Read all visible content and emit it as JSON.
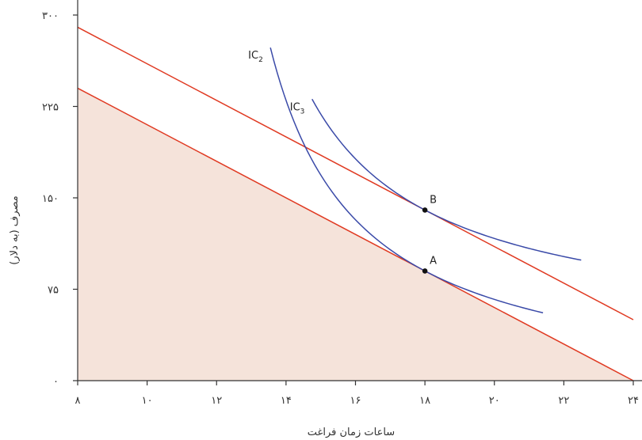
{
  "chart_data": {
    "type": "line",
    "xlabel": "ساعات زمان فراغت",
    "ylabel": "مصرف (به دلار)",
    "xlim": [
      8,
      24
    ],
    "ylim": [
      0,
      300
    ],
    "x_ticks": [
      8,
      10,
      12,
      14,
      16,
      18,
      20,
      22,
      24
    ],
    "x_tick_labels": [
      "۸",
      "۱۰",
      "۱۲",
      "۱۴",
      "۱۶",
      "۱۸",
      "۲۰",
      "۲۲",
      "۲۴"
    ],
    "y_ticks": [
      0,
      75,
      150,
      225,
      300
    ],
    "y_tick_labels": [
      "۰",
      "۷۵",
      "۱۵۰",
      "۲۲۵",
      "۳۰۰"
    ],
    "shaded_region": {
      "points": [
        [
          8,
          0
        ],
        [
          8,
          240
        ],
        [
          24,
          0
        ]
      ],
      "color": "#f5e3da"
    },
    "budget_lines": [
      {
        "points": [
          [
            8,
            240
          ],
          [
            24,
            0
          ]
        ],
        "color": "#e03a22"
      },
      {
        "points": [
          [
            8,
            290
          ],
          [
            24,
            50
          ]
        ],
        "color": "#e03a22"
      }
    ],
    "indifference_curves": [
      {
        "label": "IC",
        "subscript": "2",
        "x_min": 13.55,
        "x_max": 21.4,
        "tangent_x": 18,
        "tangent_y": 90,
        "slope": -15,
        "color": "#3a4aa8"
      },
      {
        "label": "IC",
        "subscript": "3",
        "x_min": 14.75,
        "x_max": 22.5,
        "tangent_x": 18,
        "tangent_y": 140,
        "slope": -15,
        "color": "#3a4aa8"
      }
    ],
    "points": [
      {
        "label": "A",
        "x": 18,
        "y": 90
      },
      {
        "label": "B",
        "x": 18,
        "y": 140
      }
    ],
    "grid": false
  }
}
